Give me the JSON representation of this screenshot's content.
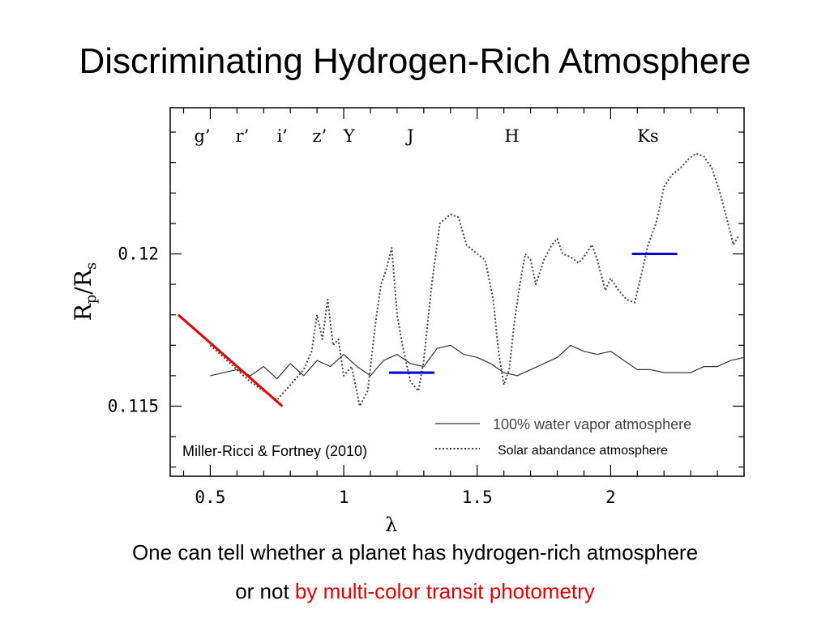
{
  "slide": {
    "title": "Discriminating Hydrogen-Rich Atmosphere",
    "caption_line1": "One can tell whether a planet has hydrogen-rich atmosphere",
    "caption_line2_plain": "or not ",
    "caption_line2_highlight": "by multi-color transit photometry",
    "highlight_color": "#e00000"
  },
  "chart_data": {
    "type": "line",
    "xlabel": "λ",
    "ylabel_main": "R",
    "ylabel_sub1": "p",
    "ylabel_slash": "/",
    "ylabel_main2": "R",
    "ylabel_sub2": "s",
    "xlim": [
      0.35,
      2.5
    ],
    "ylim": [
      0.1127,
      0.1248
    ],
    "x_ticks": [
      {
        "value": 0.5,
        "label": "0.5"
      },
      {
        "value": 1,
        "label": "1"
      },
      {
        "value": 1.5,
        "label": "1.5"
      },
      {
        "value": 2,
        "label": "2"
      }
    ],
    "y_ticks": [
      {
        "value": 0.115,
        "label": "0.115"
      },
      {
        "value": 0.12,
        "label": "0.12"
      }
    ],
    "band_labels": [
      {
        "label": "g’",
        "x": 0.47
      },
      {
        "label": "r’",
        "x": 0.62
      },
      {
        "label": "i’",
        "x": 0.77
      },
      {
        "label": "z’",
        "x": 0.91
      },
      {
        "label": "Y",
        "x": 1.02
      },
      {
        "label": "J",
        "x": 1.25
      },
      {
        "label": "H",
        "x": 1.63
      },
      {
        "label": "Ks",
        "x": 2.14
      }
    ],
    "series": [
      {
        "name": "100% water vapor atmosphere",
        "style": "solid",
        "color": "#333333",
        "points": [
          [
            0.5,
            0.116
          ],
          [
            0.55,
            0.1161
          ],
          [
            0.6,
            0.1162
          ],
          [
            0.65,
            0.116
          ],
          [
            0.7,
            0.1163
          ],
          [
            0.75,
            0.1159
          ],
          [
            0.8,
            0.1164
          ],
          [
            0.85,
            0.116
          ],
          [
            0.9,
            0.1165
          ],
          [
            0.95,
            0.1163
          ],
          [
            1.0,
            0.1167
          ],
          [
            1.05,
            0.1163
          ],
          [
            1.1,
            0.116
          ],
          [
            1.15,
            0.1165
          ],
          [
            1.2,
            0.1167
          ],
          [
            1.25,
            0.1164
          ],
          [
            1.3,
            0.1163
          ],
          [
            1.35,
            0.1169
          ],
          [
            1.4,
            0.117
          ],
          [
            1.45,
            0.1167
          ],
          [
            1.5,
            0.1166
          ],
          [
            1.55,
            0.1164
          ],
          [
            1.6,
            0.1161
          ],
          [
            1.65,
            0.116
          ],
          [
            1.7,
            0.1162
          ],
          [
            1.75,
            0.1164
          ],
          [
            1.8,
            0.1166
          ],
          [
            1.85,
            0.117
          ],
          [
            1.9,
            0.1168
          ],
          [
            1.95,
            0.1167
          ],
          [
            2.0,
            0.1168
          ],
          [
            2.05,
            0.1165
          ],
          [
            2.1,
            0.1162
          ],
          [
            2.15,
            0.1162
          ],
          [
            2.2,
            0.1161
          ],
          [
            2.25,
            0.1161
          ],
          [
            2.3,
            0.1161
          ],
          [
            2.35,
            0.1163
          ],
          [
            2.4,
            0.1163
          ],
          [
            2.45,
            0.1165
          ],
          [
            2.5,
            0.1166
          ]
        ]
      },
      {
        "name": "Solar abandance atmosphere",
        "style": "dotted",
        "color": "#444444",
        "points": [
          [
            0.5,
            0.117
          ],
          [
            0.55,
            0.1166
          ],
          [
            0.6,
            0.1162
          ],
          [
            0.65,
            0.1158
          ],
          [
            0.7,
            0.1155
          ],
          [
            0.75,
            0.1152
          ],
          [
            0.8,
            0.1157
          ],
          [
            0.85,
            0.1162
          ],
          [
            0.88,
            0.1168
          ],
          [
            0.9,
            0.118
          ],
          [
            0.92,
            0.1172
          ],
          [
            0.94,
            0.1185
          ],
          [
            0.96,
            0.117
          ],
          [
            0.98,
            0.1172
          ],
          [
            1.0,
            0.116
          ],
          [
            1.03,
            0.1163
          ],
          [
            1.06,
            0.115
          ],
          [
            1.09,
            0.1155
          ],
          [
            1.12,
            0.1178
          ],
          [
            1.14,
            0.119
          ],
          [
            1.16,
            0.1195
          ],
          [
            1.18,
            0.1202
          ],
          [
            1.2,
            0.118
          ],
          [
            1.22,
            0.117
          ],
          [
            1.25,
            0.1158
          ],
          [
            1.28,
            0.1155
          ],
          [
            1.3,
            0.1165
          ],
          [
            1.33,
            0.119
          ],
          [
            1.36,
            0.121
          ],
          [
            1.4,
            0.1213
          ],
          [
            1.43,
            0.1212
          ],
          [
            1.46,
            0.1203
          ],
          [
            1.5,
            0.12
          ],
          [
            1.53,
            0.1198
          ],
          [
            1.56,
            0.1185
          ],
          [
            1.58,
            0.1168
          ],
          [
            1.6,
            0.1157
          ],
          [
            1.62,
            0.1162
          ],
          [
            1.64,
            0.1178
          ],
          [
            1.66,
            0.119
          ],
          [
            1.68,
            0.12
          ],
          [
            1.7,
            0.1198
          ],
          [
            1.72,
            0.119
          ],
          [
            1.75,
            0.1198
          ],
          [
            1.78,
            0.1203
          ],
          [
            1.8,
            0.1205
          ],
          [
            1.82,
            0.12
          ],
          [
            1.85,
            0.1199
          ],
          [
            1.88,
            0.1197
          ],
          [
            1.9,
            0.1199
          ],
          [
            1.93,
            0.1203
          ],
          [
            1.95,
            0.1198
          ],
          [
            1.98,
            0.1188
          ],
          [
            2.0,
            0.1192
          ],
          [
            2.03,
            0.1188
          ],
          [
            2.06,
            0.1185
          ],
          [
            2.09,
            0.1184
          ],
          [
            2.12,
            0.1195
          ],
          [
            2.14,
            0.1203
          ],
          [
            2.17,
            0.121
          ],
          [
            2.2,
            0.1222
          ],
          [
            2.23,
            0.1226
          ],
          [
            2.26,
            0.1228
          ],
          [
            2.29,
            0.1231
          ],
          [
            2.32,
            0.1233
          ],
          [
            2.35,
            0.1232
          ],
          [
            2.38,
            0.1228
          ],
          [
            2.41,
            0.122
          ],
          [
            2.44,
            0.121
          ],
          [
            2.46,
            0.1203
          ],
          [
            2.48,
            0.1206
          ]
        ]
      }
    ],
    "observations": [
      {
        "x_start": 1.17,
        "x_end": 1.34,
        "y": 0.1161,
        "color": "#0000cc"
      },
      {
        "x_start": 2.08,
        "x_end": 2.25,
        "y": 0.12,
        "color": "#0000cc"
      }
    ],
    "trend_line": {
      "x1": 0.38,
      "y1": 0.118,
      "x2": 0.77,
      "y2": 0.115,
      "color": "#e00000"
    },
    "legend": {
      "position": "bottom-right",
      "entries": [
        {
          "label": "100% water vapor atmosphere",
          "style": "solid"
        },
        {
          "label": "Solar abandance atmosphere",
          "style": "dotted"
        }
      ]
    },
    "annotation": "Miller-Ricci & Fortney (2010)",
    "grid": false
  }
}
